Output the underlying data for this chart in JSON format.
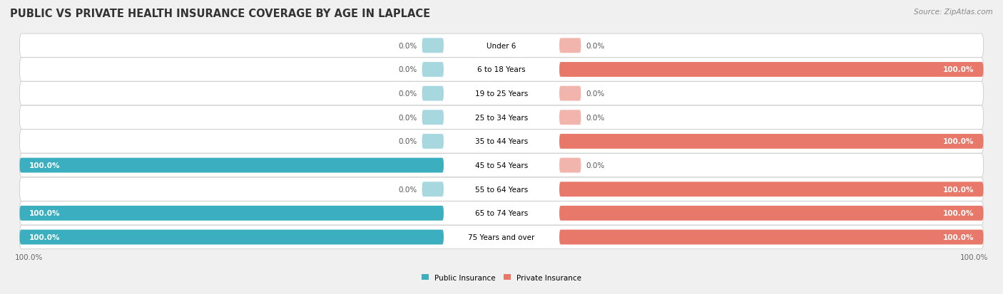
{
  "title": "PUBLIC VS PRIVATE HEALTH INSURANCE COVERAGE BY AGE IN LAPLACE",
  "source": "Source: ZipAtlas.com",
  "categories": [
    "Under 6",
    "6 to 18 Years",
    "19 to 25 Years",
    "25 to 34 Years",
    "35 to 44 Years",
    "45 to 54 Years",
    "55 to 64 Years",
    "65 to 74 Years",
    "75 Years and over"
  ],
  "public_values": [
    0.0,
    0.0,
    0.0,
    0.0,
    0.0,
    100.0,
    0.0,
    100.0,
    100.0
  ],
  "private_values": [
    0.0,
    100.0,
    0.0,
    0.0,
    100.0,
    0.0,
    100.0,
    100.0,
    100.0
  ],
  "public_color": "#3BAFC0",
  "private_color": "#E8796A",
  "public_color_light": "#A8D8DF",
  "private_color_light": "#F2B5AD",
  "background_color": "#f0f0f0",
  "row_bg_color": "#ffffff",
  "row_gap_color": "#e0e0e0",
  "max_val": 100,
  "legend_labels": [
    "Public Insurance",
    "Private Insurance"
  ],
  "title_fontsize": 10.5,
  "label_fontsize": 7.5,
  "value_fontsize": 7.5,
  "source_fontsize": 7.5
}
